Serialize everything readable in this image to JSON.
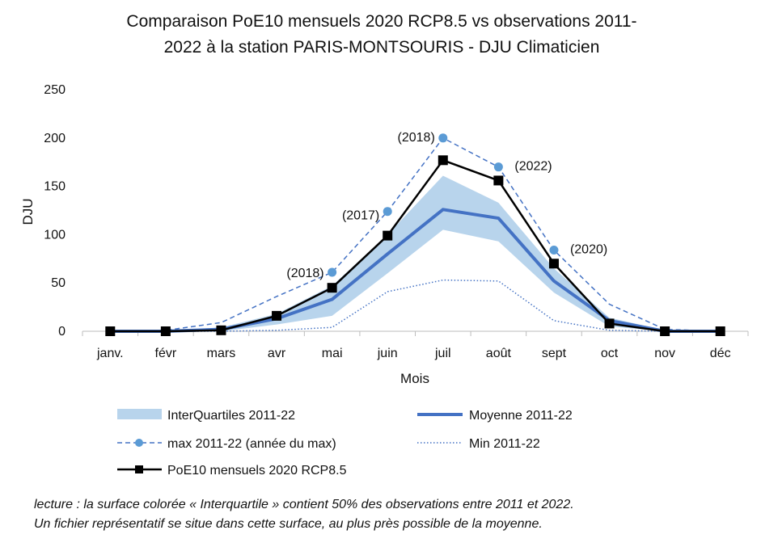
{
  "chart_data": {
    "type": "line",
    "title": "Comparaison PoE10 mensuels 2020 RCP8.5 vs observations 2011-2022 à la station PARIS-MONTSOURIS - DJU Climaticien",
    "title_lines": [
      "Comparaison PoE10 mensuels 2020 RCP8.5 vs observations 2011-",
      "2022 à la station PARIS-MONTSOURIS - DJU Climaticien"
    ],
    "xlabel": "Mois",
    "ylabel": "DJU",
    "ylim": [
      0,
      250
    ],
    "yticks": [
      "0",
      "50",
      "100",
      "150",
      "200",
      "250"
    ],
    "categories": [
      "janv.",
      "févr",
      "mars",
      "avr",
      "mai",
      "juin",
      "juil",
      "août",
      "sept",
      "oct",
      "nov",
      "déc"
    ],
    "grid": false,
    "legend_position": "bottom",
    "series": [
      {
        "name": "InterQuartiles 2011-22",
        "kind": "band",
        "color": "#b8d4ec",
        "lower": [
          0,
          0,
          0,
          7,
          16,
          60,
          105,
          93,
          40,
          5,
          0,
          0
        ],
        "upper": [
          0,
          0,
          4,
          18,
          47,
          100,
          161,
          133,
          65,
          14,
          1,
          0
        ]
      },
      {
        "name": "Moyenne 2011-22",
        "kind": "line",
        "color": "#4472c4",
        "values": [
          0,
          0,
          2,
          13,
          33,
          80,
          126,
          117,
          52,
          11,
          0,
          0
        ]
      },
      {
        "name": "max 2011-22 (année du max)",
        "kind": "dashed-dots",
        "color": "#5b9bd5",
        "values": [
          0,
          1,
          9,
          36,
          61,
          124,
          200,
          170,
          84,
          28,
          2,
          0
        ],
        "annotations": [
          "",
          "",
          "",
          "",
          "(2018)",
          "(2017)",
          "(2018)",
          "(2022)",
          "(2020)",
          "",
          "",
          ""
        ]
      },
      {
        "name": "Min 2011-22",
        "kind": "dotted",
        "color": "#4472c4",
        "values": [
          0,
          0,
          0,
          1,
          4,
          41,
          53,
          52,
          11,
          1,
          0,
          0
        ]
      },
      {
        "name": "PoE10 mensuels 2020 RCP8.5",
        "kind": "line-squares",
        "color": "#000000",
        "values": [
          0,
          0,
          1,
          16,
          45,
          99,
          177,
          156,
          70,
          8,
          0,
          0
        ]
      }
    ]
  },
  "note": {
    "line1": "lecture : la surface colorée « Interquartile » contient 50% des observations entre 2011 et 2022.",
    "line2": "Un fichier représentatif se situe dans cette surface, au plus près possible de la moyenne."
  }
}
